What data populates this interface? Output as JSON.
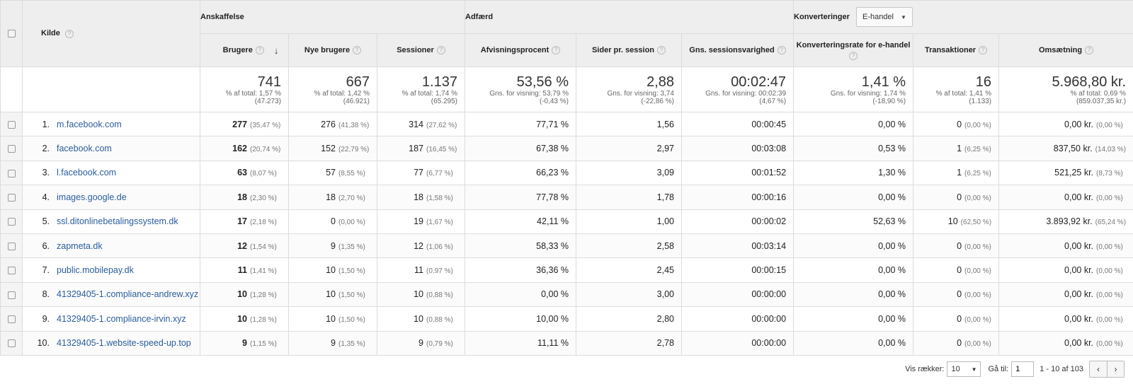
{
  "groups": {
    "source_label": "Kilde",
    "acquisition": "Anskaffelse",
    "behavior": "Adfærd",
    "conversions_label": "Konverteringer",
    "conversions_select": "E-handel"
  },
  "columns": {
    "users": "Brugere",
    "new_users": "Nye brugere",
    "sessions": "Sessioner",
    "bounce_rate": "Afvisningsprocent",
    "pages_per_session": "Sider pr. session",
    "avg_session_duration": "Gns. sessionsvarighed",
    "conversion_rate": "Konverteringsrate for e-handel",
    "transactions": "Transaktioner",
    "revenue": "Omsætning"
  },
  "totals": {
    "users": {
      "value": "741",
      "sub1": "% af total: 1,57 %",
      "sub2": "(47.273)"
    },
    "new_users": {
      "value": "667",
      "sub1": "% af total: 1,42 %",
      "sub2": "(46.921)"
    },
    "sessions": {
      "value": "1.137",
      "sub1": "% af total: 1,74 %",
      "sub2": "(65.295)"
    },
    "bounce_rate": {
      "value": "53,56 %",
      "sub1": "Gns. for visning: 53,79 %",
      "sub2": "(-0,43 %)"
    },
    "pages": {
      "value": "2,88",
      "sub1": "Gns. for visning: 3,74",
      "sub2": "(-22,86 %)"
    },
    "duration": {
      "value": "00:02:47",
      "sub1": "Gns. for visning: 00:02:39",
      "sub2": "(4,67 %)"
    },
    "conv_rate": {
      "value": "1,41 %",
      "sub1": "Gns. for visning: 1,74 %",
      "sub2": "(-18,90 %)"
    },
    "transactions": {
      "value": "16",
      "sub1": "% af total: 1,41 %",
      "sub2": "(1.133)"
    },
    "revenue": {
      "value": "5.968,80 kr.",
      "sub1": "% af total: 0,69 %",
      "sub2": "(859.037,35 kr.)"
    }
  },
  "rows": [
    {
      "idx": "1.",
      "source": "m.facebook.com",
      "users": "277",
      "users_p": "(35,47 %)",
      "new": "276",
      "new_p": "(41,38 %)",
      "sess": "314",
      "sess_p": "(27,62 %)",
      "bounce": "77,71 %",
      "pages": "1,56",
      "dur": "00:00:45",
      "conv": "0,00 %",
      "tx": "0",
      "tx_p": "(0,00 %)",
      "rev": "0,00 kr.",
      "rev_p": "(0,00 %)"
    },
    {
      "idx": "2.",
      "source": "facebook.com",
      "users": "162",
      "users_p": "(20,74 %)",
      "new": "152",
      "new_p": "(22,79 %)",
      "sess": "187",
      "sess_p": "(16,45 %)",
      "bounce": "67,38 %",
      "pages": "2,97",
      "dur": "00:03:08",
      "conv": "0,53 %",
      "tx": "1",
      "tx_p": "(6,25 %)",
      "rev": "837,50 kr.",
      "rev_p": "(14,03 %)"
    },
    {
      "idx": "3.",
      "source": "l.facebook.com",
      "users": "63",
      "users_p": "(8,07 %)",
      "new": "57",
      "new_p": "(8,55 %)",
      "sess": "77",
      "sess_p": "(6,77 %)",
      "bounce": "66,23 %",
      "pages": "3,09",
      "dur": "00:01:52",
      "conv": "1,30 %",
      "tx": "1",
      "tx_p": "(6,25 %)",
      "rev": "521,25 kr.",
      "rev_p": "(8,73 %)"
    },
    {
      "idx": "4.",
      "source": "images.google.de",
      "users": "18",
      "users_p": "(2,30 %)",
      "new": "18",
      "new_p": "(2,70 %)",
      "sess": "18",
      "sess_p": "(1,58 %)",
      "bounce": "77,78 %",
      "pages": "1,78",
      "dur": "00:00:16",
      "conv": "0,00 %",
      "tx": "0",
      "tx_p": "(0,00 %)",
      "rev": "0,00 kr.",
      "rev_p": "(0,00 %)"
    },
    {
      "idx": "5.",
      "source": "ssl.ditonlinebetalingssystem.dk",
      "users": "17",
      "users_p": "(2,18 %)",
      "new": "0",
      "new_p": "(0,00 %)",
      "sess": "19",
      "sess_p": "(1,67 %)",
      "bounce": "42,11 %",
      "pages": "1,00",
      "dur": "00:00:02",
      "conv": "52,63 %",
      "tx": "10",
      "tx_p": "(62,50 %)",
      "rev": "3.893,92 kr.",
      "rev_p": "(65,24 %)"
    },
    {
      "idx": "6.",
      "source": "zapmeta.dk",
      "users": "12",
      "users_p": "(1,54 %)",
      "new": "9",
      "new_p": "(1,35 %)",
      "sess": "12",
      "sess_p": "(1,06 %)",
      "bounce": "58,33 %",
      "pages": "2,58",
      "dur": "00:03:14",
      "conv": "0,00 %",
      "tx": "0",
      "tx_p": "(0,00 %)",
      "rev": "0,00 kr.",
      "rev_p": "(0,00 %)"
    },
    {
      "idx": "7.",
      "source": "public.mobilepay.dk",
      "users": "11",
      "users_p": "(1,41 %)",
      "new": "10",
      "new_p": "(1,50 %)",
      "sess": "11",
      "sess_p": "(0,97 %)",
      "bounce": "36,36 %",
      "pages": "2,45",
      "dur": "00:00:15",
      "conv": "0,00 %",
      "tx": "0",
      "tx_p": "(0,00 %)",
      "rev": "0,00 kr.",
      "rev_p": "(0,00 %)"
    },
    {
      "idx": "8.",
      "source": "41329405-1.compliance-andrew.xyz",
      "users": "10",
      "users_p": "(1,28 %)",
      "new": "10",
      "new_p": "(1,50 %)",
      "sess": "10",
      "sess_p": "(0,88 %)",
      "bounce": "0,00 %",
      "pages": "3,00",
      "dur": "00:00:00",
      "conv": "0,00 %",
      "tx": "0",
      "tx_p": "(0,00 %)",
      "rev": "0,00 kr.",
      "rev_p": "(0,00 %)"
    },
    {
      "idx": "9.",
      "source": "41329405-1.compliance-irvin.xyz",
      "users": "10",
      "users_p": "(1,28 %)",
      "new": "10",
      "new_p": "(1,50 %)",
      "sess": "10",
      "sess_p": "(0,88 %)",
      "bounce": "10,00 %",
      "pages": "2,80",
      "dur": "00:00:00",
      "conv": "0,00 %",
      "tx": "0",
      "tx_p": "(0,00 %)",
      "rev": "0,00 kr.",
      "rev_p": "(0,00 %)"
    },
    {
      "idx": "10.",
      "source": "41329405-1.website-speed-up.top",
      "users": "9",
      "users_p": "(1,15 %)",
      "new": "9",
      "new_p": "(1,35 %)",
      "sess": "9",
      "sess_p": "(0,79 %)",
      "bounce": "11,11 %",
      "pages": "2,78",
      "dur": "00:00:00",
      "conv": "0,00 %",
      "tx": "0",
      "tx_p": "(0,00 %)",
      "rev": "0,00 kr.",
      "rev_p": "(0,00 %)"
    }
  ],
  "footer": {
    "rows_label": "Vis rækker:",
    "rows_value": "10",
    "goto_label": "Gå til:",
    "goto_value": "1",
    "range": "1 - 10 af 103",
    "prev": "‹",
    "next": "›"
  },
  "help_glyph": "?",
  "sort_glyph": "↓",
  "caret_glyph": "▼"
}
